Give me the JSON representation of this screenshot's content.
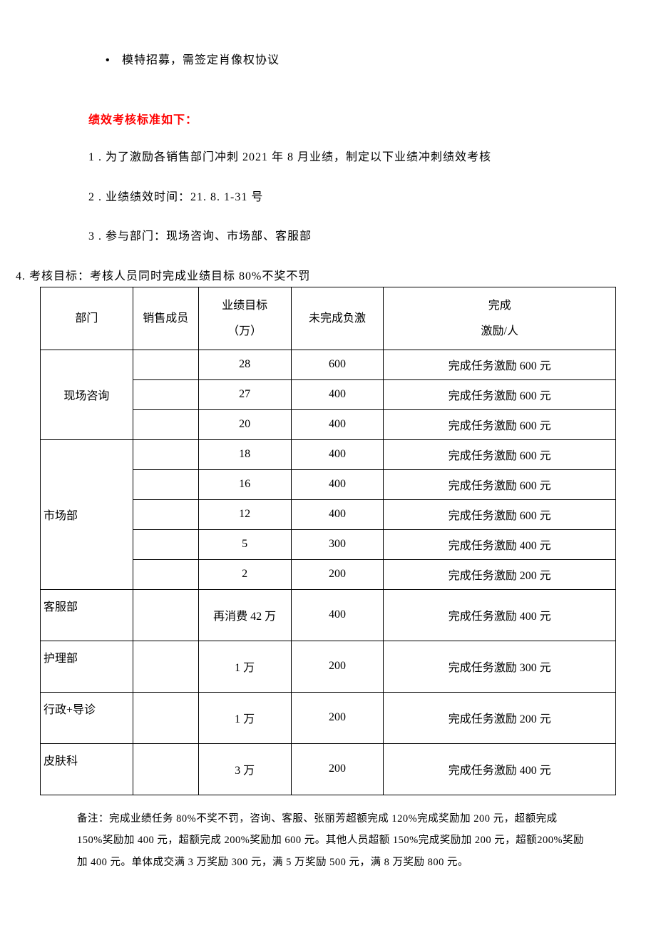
{
  "bullet_text": "模特招募，需签定肖像权协议",
  "section_header": "绩效考核标准如下：",
  "lines": {
    "l1": "1 . 为了激励各销售部门冲刺 2021 年 8 月业绩，制定以下业绩冲刺绩效考核",
    "l2": "2 . 业绩绩效时间：21. 8. 1-31 号",
    "l3": "3 . 参与部门：现场咨询、市场部、客服部",
    "l4": "4. 考核目标：考核人员同时完成业绩目标 80%不奖不罚"
  },
  "table": {
    "headers": {
      "dept": "部门",
      "member": "销售成员",
      "target_l1": "业绩目标",
      "target_l2": "（万）",
      "penalty": "未完成负激",
      "reward_l1": "完成",
      "reward_l2": "激励/人"
    },
    "groups": [
      {
        "dept": "现场咨询",
        "dept_align": "center",
        "rows": [
          {
            "member": "",
            "target": "28",
            "penalty": "600",
            "reward": "完成任务激励 600 元",
            "tall": false
          },
          {
            "member": "",
            "target": "27",
            "penalty": "400",
            "reward": "完成任务激励 600 元",
            "tall": false
          },
          {
            "member": "",
            "target": "20",
            "penalty": "400",
            "reward": "完成任务激励 600 元",
            "tall": false
          }
        ]
      },
      {
        "dept": "市场部",
        "dept_align": "left",
        "rows": [
          {
            "member": "",
            "target": "18",
            "penalty": "400",
            "reward": "完成任务激励 600 元",
            "tall": false
          },
          {
            "member": "",
            "target": "16",
            "penalty": "400",
            "reward": "完成任务激励 600 元",
            "tall": false
          },
          {
            "member": "",
            "target": "12",
            "penalty": "400",
            "reward": "完成任务激励 600 元",
            "tall": false
          },
          {
            "member": "",
            "target": "5",
            "penalty": "300",
            "reward": "完成任务激励 400 元",
            "tall": false
          },
          {
            "member": "",
            "target": "2",
            "penalty": "200",
            "reward": "完成任务激励 200 元",
            "tall": false
          }
        ]
      },
      {
        "dept": "客服部",
        "dept_align": "left",
        "rows": [
          {
            "member": "",
            "target": "再消费 42 万",
            "penalty": "400",
            "reward": "完成任务激励 400 元",
            "tall": true
          }
        ]
      },
      {
        "dept": "护理部",
        "dept_align": "left",
        "rows": [
          {
            "member": "",
            "target": "1 万",
            "penalty": "200",
            "reward": "完成任务激励 300 元",
            "tall": true
          }
        ]
      },
      {
        "dept": "行政+导诊",
        "dept_align": "left",
        "rows": [
          {
            "member": "",
            "target": "1 万",
            "penalty": "200",
            "reward": "完成任务激励 200 元",
            "tall": true
          }
        ]
      },
      {
        "dept": "皮肤科",
        "dept_align": "left",
        "rows": [
          {
            "member": "",
            "target": "3 万",
            "penalty": "200",
            "reward": "完成任务激励 400 元",
            "tall": true
          }
        ]
      }
    ]
  },
  "footnote": "备注：完成业绩任务 80%不奖不罚，咨询、客服、张丽芳超额完成 120%完成奖励加 200 元，超额完成 150%奖励加 400 元，超额完成 200%奖励加 600 元。其他人员超额 150%完成奖励加 200 元，超额200%奖励加 400 元。单体成交满 3 万奖励 300 元，满 5 万奖励 500 元，满 8 万奖励 800 元。"
}
